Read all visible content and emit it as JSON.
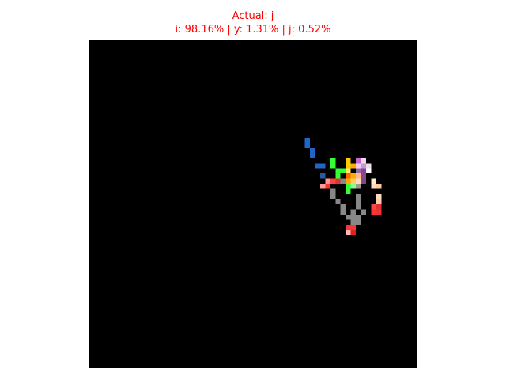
{
  "header": {
    "actual_label": "Actual: j",
    "predictions_label": "i: 98.16% | y: 1.31% | j: 0.52%"
  },
  "figure": {
    "background": "#000000",
    "title_color": "#ff0000",
    "grid_size": 64,
    "pixels": [
      [
        42,
        19,
        "#1f66c8"
      ],
      [
        42,
        20,
        "#1f66c8"
      ],
      [
        43,
        21,
        "#1f66c8"
      ],
      [
        43,
        22,
        "#1f66c8"
      ],
      [
        44,
        24,
        "#1f66c8"
      ],
      [
        45,
        24,
        "#1f66c8"
      ],
      [
        45,
        26,
        "#2c5aa0"
      ],
      [
        47,
        23,
        "#33ff33"
      ],
      [
        47,
        24,
        "#33ff33"
      ],
      [
        48,
        25,
        "#33ff33"
      ],
      [
        49,
        25,
        "#33ff33"
      ],
      [
        48,
        26,
        "#33ff33"
      ],
      [
        46,
        27,
        "#ff9999"
      ],
      [
        47,
        27,
        "#ff4444"
      ],
      [
        48,
        27,
        "#dd3333"
      ],
      [
        45,
        28,
        "#ff9999"
      ],
      [
        46,
        28,
        "#ff3333"
      ],
      [
        50,
        23,
        "#ffcc00"
      ],
      [
        50,
        24,
        "#ffcc00"
      ],
      [
        51,
        24,
        "#ffaa00"
      ],
      [
        50,
        25,
        "#ffee66"
      ],
      [
        51,
        26,
        "#ffaa00"
      ],
      [
        50,
        26,
        "#ff6600"
      ],
      [
        49,
        27,
        "#888888"
      ],
      [
        50,
        27,
        "#ffaa00"
      ],
      [
        51,
        27,
        "#ffcc66"
      ],
      [
        52,
        23,
        "#cc66cc"
      ],
      [
        53,
        23,
        "#f0d8f0"
      ],
      [
        52,
        24,
        "#eeccee"
      ],
      [
        53,
        24,
        "#cc99cc"
      ],
      [
        54,
        24,
        "#eeddee"
      ],
      [
        52,
        25,
        "#9966aa"
      ],
      [
        53,
        25,
        "#884499"
      ],
      [
        54,
        25,
        "#ffffff"
      ],
      [
        52,
        26,
        "#ffbb88"
      ],
      [
        53,
        26,
        "#8a4a8a"
      ],
      [
        53,
        27,
        "#884488"
      ],
      [
        52,
        27,
        "#ffddbb"
      ],
      [
        50,
        28,
        "#33ff33"
      ],
      [
        51,
        28,
        "#88ff88"
      ],
      [
        52,
        28,
        "#999999"
      ],
      [
        50,
        29,
        "#33ff33"
      ],
      [
        55,
        27,
        "#ffeecc"
      ],
      [
        55,
        28,
        "#ffddbb"
      ],
      [
        56,
        28,
        "#ffcc99"
      ],
      [
        47,
        29,
        "#888888"
      ],
      [
        47,
        30,
        "#888888"
      ],
      [
        48,
        31,
        "#888888"
      ],
      [
        49,
        32,
        "#888888"
      ],
      [
        49,
        33,
        "#888888"
      ],
      [
        50,
        34,
        "#888888"
      ],
      [
        52,
        30,
        "#888888"
      ],
      [
        52,
        31,
        "#888888"
      ],
      [
        52,
        32,
        "#888888"
      ],
      [
        51,
        33,
        "#888888"
      ],
      [
        51,
        34,
        "#888888"
      ],
      [
        52,
        34,
        "#888888"
      ],
      [
        53,
        33,
        "#888888"
      ],
      [
        51,
        35,
        "#888888"
      ],
      [
        52,
        35,
        "#888888"
      ],
      [
        51,
        36,
        "#ff3333"
      ],
      [
        50,
        36,
        "#ff3333"
      ],
      [
        50,
        37,
        "#ffbbbb"
      ],
      [
        51,
        37,
        "#dd2222"
      ],
      [
        56,
        30,
        "#ffddbb"
      ],
      [
        56,
        31,
        "#ffccaa"
      ],
      [
        55,
        32,
        "#ff4444"
      ],
      [
        56,
        32,
        "#dd3333"
      ],
      [
        55,
        33,
        "#ff3333"
      ],
      [
        56,
        33,
        "#ee3333"
      ]
    ]
  }
}
